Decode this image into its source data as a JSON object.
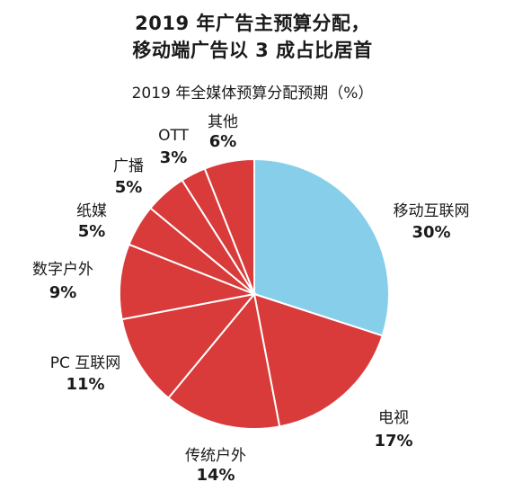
{
  "chart_data": {
    "type": "pie",
    "title": "2019 年广告主预算分配，",
    "title_line2": "移动端广告以 3 成占比居首",
    "subtitle": "2019 年全媒体预算分配预期（%）",
    "unit": "%",
    "slices": [
      {
        "label": "移动互联网",
        "value": 30,
        "display": "30%",
        "color": "#87CEEB"
      },
      {
        "label": "电视",
        "value": 17,
        "display": "17%",
        "color": "#D93A3A"
      },
      {
        "label": "传统户外",
        "value": 14,
        "display": "14%",
        "color": "#D93A3A"
      },
      {
        "label": "PC 互联网",
        "value": 11,
        "display": "11%",
        "color": "#D93A3A"
      },
      {
        "label": "数字户外",
        "value": 9,
        "display": "9%",
        "color": "#D93A3A"
      },
      {
        "label": "纸媒",
        "value": 5,
        "display": "5%",
        "color": "#D93A3A"
      },
      {
        "label": "广播",
        "value": 5,
        "display": "5%",
        "color": "#D93A3A"
      },
      {
        "label": "OTT",
        "value": 3,
        "display": "3%",
        "color": "#D93A3A"
      },
      {
        "label": "其他",
        "value": 6,
        "display": "6%",
        "color": "#D93A3A"
      }
    ],
    "start_angle": "12 o'clock",
    "direction": "clockwise",
    "slice_border_color": "#ffffff"
  }
}
